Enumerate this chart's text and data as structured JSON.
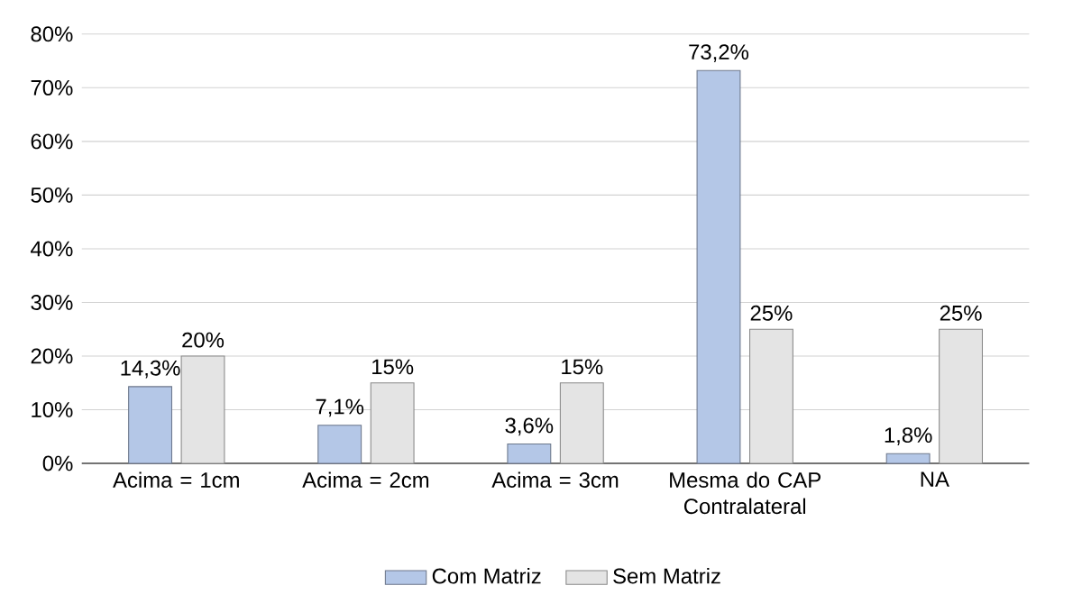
{
  "chart_data": {
    "type": "bar",
    "categories": [
      "Acima = 1cm",
      "Acima = 2cm",
      "Acima = 3cm",
      "Mesma do CAP Contralateral",
      "NA"
    ],
    "series": [
      {
        "name": "Com Matriz",
        "color": "#b4c7e7",
        "values": [
          14.3,
          7.1,
          3.6,
          73.2,
          1.8
        ],
        "value_labels": [
          "14,3%",
          "7,1%",
          "3,6%",
          "73,2%",
          "1,8%"
        ]
      },
      {
        "name": "Sem Matriz",
        "color": "#e4e4e4",
        "values": [
          20,
          15,
          15,
          25,
          25
        ],
        "value_labels": [
          "20%",
          "15%",
          "15%",
          "25%",
          "25%"
        ]
      }
    ],
    "ylim": [
      0,
      80
    ],
    "yticks": [
      {
        "value": 0,
        "label": "0%"
      },
      {
        "value": 10,
        "label": "10%"
      },
      {
        "value": 20,
        "label": "20%"
      },
      {
        "value": 30,
        "label": "30%"
      },
      {
        "value": 40,
        "label": "40%"
      },
      {
        "value": 50,
        "label": "50%"
      },
      {
        "value": 60,
        "label": "60%"
      },
      {
        "value": 70,
        "label": "70%"
      },
      {
        "value": 80,
        "label": "80%"
      }
    ],
    "grid": "y",
    "legend": "bottom"
  }
}
